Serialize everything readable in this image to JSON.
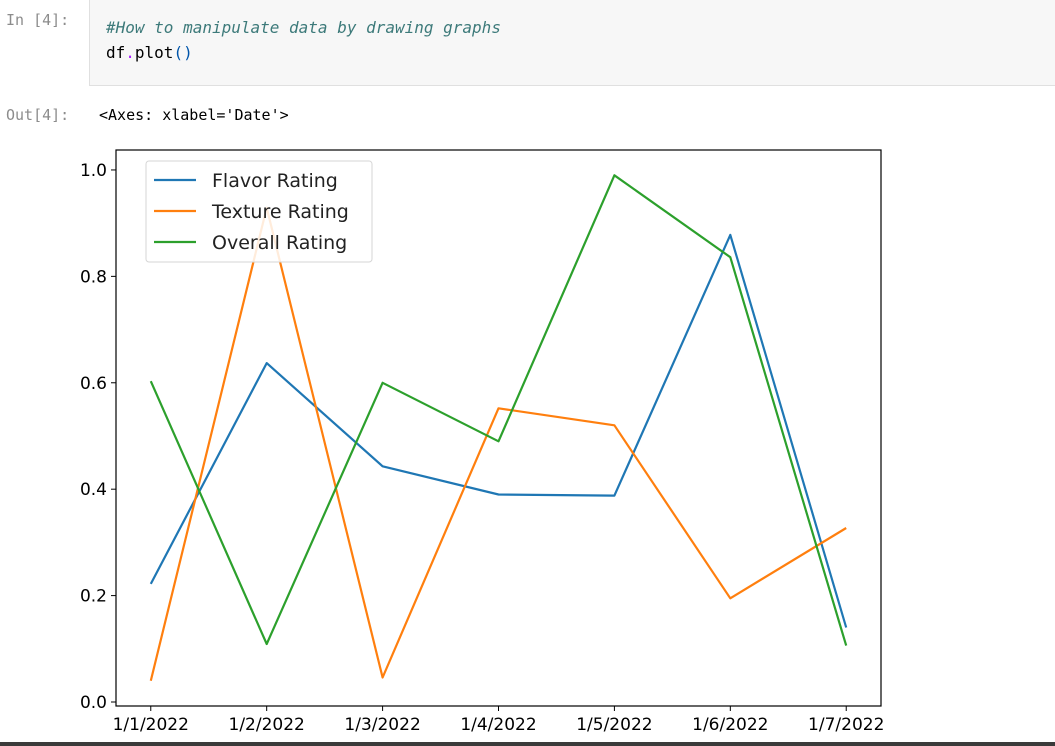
{
  "cell": {
    "in_prompt": "In [4]:",
    "code_comment": "#How to manipulate data by drawing graphs",
    "code_obj": "df",
    "code_dot": ".",
    "code_method": "plot",
    "code_parens": "()",
    "out_prompt": "Out[4]:",
    "out_text": "<Axes: xlabel='Date'>"
  },
  "chart_data": {
    "type": "line",
    "x": [
      "1/1/2022",
      "1/2/2022",
      "1/3/2022",
      "1/4/2022",
      "1/5/2022",
      "1/6/2022",
      "1/7/2022"
    ],
    "ylim": [
      0.0,
      1.0
    ],
    "yticks": [
      "0.0",
      "0.2",
      "0.4",
      "0.6",
      "0.8",
      "1.0"
    ],
    "xlabel": "",
    "ylabel": "",
    "grid": false,
    "legend_position": "top-left",
    "series": [
      {
        "name": "Flavor Rating",
        "color": "#1f77b4",
        "values": [
          0.222,
          0.637,
          0.443,
          0.39,
          0.388,
          0.878,
          0.14
        ]
      },
      {
        "name": "Texture Rating",
        "color": "#ff7f0e",
        "values": [
          0.04,
          0.929,
          0.046,
          0.552,
          0.52,
          0.195,
          0.327
        ]
      },
      {
        "name": "Overall Rating",
        "color": "#2ca02c",
        "values": [
          0.603,
          0.109,
          0.6,
          0.49,
          0.99,
          0.836,
          0.106
        ]
      }
    ]
  }
}
